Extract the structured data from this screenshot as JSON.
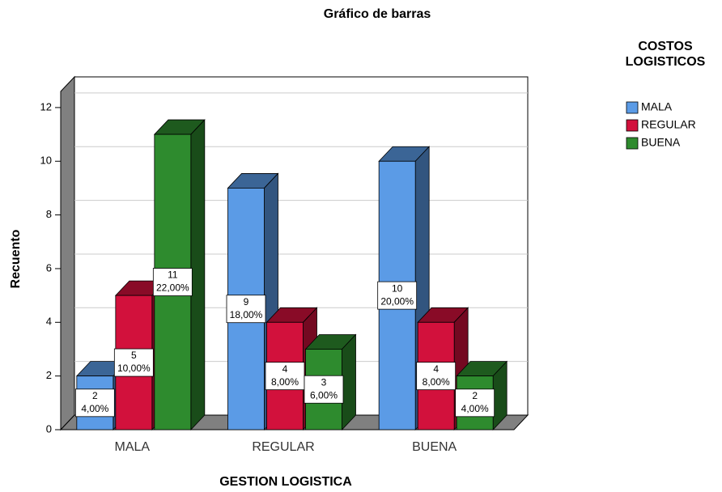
{
  "chart_data": {
    "type": "bar3d",
    "title": "Gráfico de barras",
    "x_label": "GESTION LOGISTICA",
    "y_label": "Recuento",
    "legend_title": [
      "COSTOS",
      "LOGISTICOS"
    ],
    "categories": [
      "MALA",
      "REGULAR",
      "BUENA"
    ],
    "series": [
      {
        "name": "MALA",
        "color": "#5b9be6",
        "values": [
          2,
          9,
          10
        ],
        "percent_labels": [
          "4,00%",
          "18,00%",
          "20,00%"
        ]
      },
      {
        "name": "REGULAR",
        "color": "#d2113c",
        "values": [
          5,
          4,
          4
        ],
        "percent_labels": [
          "10,00%",
          "8,00%",
          "8,00%"
        ]
      },
      {
        "name": "BUENA",
        "color": "#2e8b2e",
        "values": [
          11,
          3,
          2
        ],
        "percent_labels": [
          "22,00%",
          "6,00%",
          "4,00%"
        ]
      }
    ],
    "ylim": [
      0,
      12.6
    ],
    "yticks": [
      0,
      2,
      4,
      6,
      8,
      10,
      12
    ],
    "grid": true
  }
}
